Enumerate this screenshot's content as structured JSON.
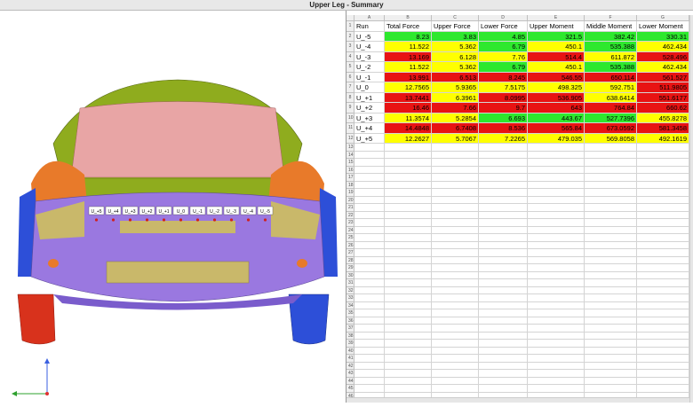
{
  "window": {
    "title": "Upper Leg - Summary"
  },
  "viewport": {
    "labels": [
      "U_+5",
      "U_+4",
      "U_+3",
      "U_+2",
      "U_+1",
      "U_0",
      "U_-1",
      "U_-2",
      "U_-3",
      "U_-4",
      "U_-5"
    ]
  },
  "sheet": {
    "column_letters": [
      "A",
      "B",
      "C",
      "D",
      "E",
      "F",
      "G"
    ],
    "headers": [
      "Run",
      "Total Force",
      "Upper Force",
      "Lower Force",
      "Upper Moment",
      "Middle Moment",
      "Lower Moment"
    ],
    "fill_colors": {
      "green": "#2ee82e",
      "yellow": "#ffff00",
      "red": "#e81313"
    },
    "rows": [
      {
        "run": "U_-5",
        "cells": [
          "8.23",
          "3.83",
          "4.85",
          "321.5",
          "382.42",
          "330.31"
        ],
        "fills": [
          "green",
          "green",
          "green",
          "green",
          "green",
          "green"
        ]
      },
      {
        "run": "U_-4",
        "cells": [
          "11.522",
          "5.362",
          "6.79",
          "450.1",
          "535.388",
          "462.434"
        ],
        "fills": [
          "yellow",
          "yellow",
          "green",
          "yellow",
          "green",
          "yellow"
        ]
      },
      {
        "run": "U_-3",
        "cells": [
          "13.169",
          "6.128",
          "7.76",
          "514.4",
          "611.872",
          "528.496"
        ],
        "fills": [
          "red",
          "yellow",
          "yellow",
          "red",
          "yellow",
          "red"
        ]
      },
      {
        "run": "U_-2",
        "cells": [
          "11.522",
          "5.362",
          "6.79",
          "450.1",
          "535.388",
          "462.434"
        ],
        "fills": [
          "yellow",
          "yellow",
          "green",
          "yellow",
          "green",
          "yellow"
        ]
      },
      {
        "run": "U_-1",
        "cells": [
          "13.991",
          "6.513",
          "8.245",
          "546.55",
          "650.114",
          "561.527"
        ],
        "fills": [
          "red",
          "red",
          "red",
          "red",
          "red",
          "red"
        ]
      },
      {
        "run": "U_0",
        "cells": [
          "12.7565",
          "5.9365",
          "7.5175",
          "498.325",
          "592.751",
          "511.9805"
        ],
        "fills": [
          "yellow",
          "yellow",
          "yellow",
          "yellow",
          "yellow",
          "red"
        ]
      },
      {
        "run": "U_+1",
        "cells": [
          "13.7441",
          "6.3961",
          "8.0995",
          "536.905",
          "638.6414",
          "551.6177"
        ],
        "fills": [
          "red",
          "yellow",
          "red",
          "red",
          "yellow",
          "red"
        ]
      },
      {
        "run": "U_+2",
        "cells": [
          "16.46",
          "7.66",
          "9.7",
          "643",
          "764.84",
          "660.62"
        ],
        "fills": [
          "red",
          "red",
          "red",
          "red",
          "red",
          "red"
        ]
      },
      {
        "run": "U_+3",
        "cells": [
          "11.3574",
          "5.2854",
          "6.693",
          "443.67",
          "527.7396",
          "455.8278"
        ],
        "fills": [
          "yellow",
          "yellow",
          "green",
          "green",
          "green",
          "yellow"
        ]
      },
      {
        "run": "U_+4",
        "cells": [
          "14.4848",
          "6.7408",
          "8.536",
          "565.84",
          "673.0592",
          "581.3458"
        ],
        "fills": [
          "red",
          "red",
          "red",
          "red",
          "red",
          "red"
        ]
      },
      {
        "run": "U_+5",
        "cells": [
          "12.2627",
          "5.7067",
          "7.2265",
          "479.035",
          "569.8058",
          "492.1619"
        ],
        "fills": [
          "yellow",
          "yellow",
          "yellow",
          "yellow",
          "yellow",
          "yellow"
        ]
      }
    ],
    "row_numbers": [
      1,
      2,
      3,
      4,
      5,
      6,
      7,
      8,
      9,
      10,
      11,
      12,
      13,
      14,
      15,
      16,
      17,
      18,
      19,
      20,
      21,
      22,
      23,
      24,
      25,
      26,
      27,
      28,
      29,
      30,
      31,
      32,
      33,
      34,
      35,
      36,
      37,
      38,
      39,
      40,
      41,
      42,
      43,
      44,
      45,
      46
    ]
  }
}
